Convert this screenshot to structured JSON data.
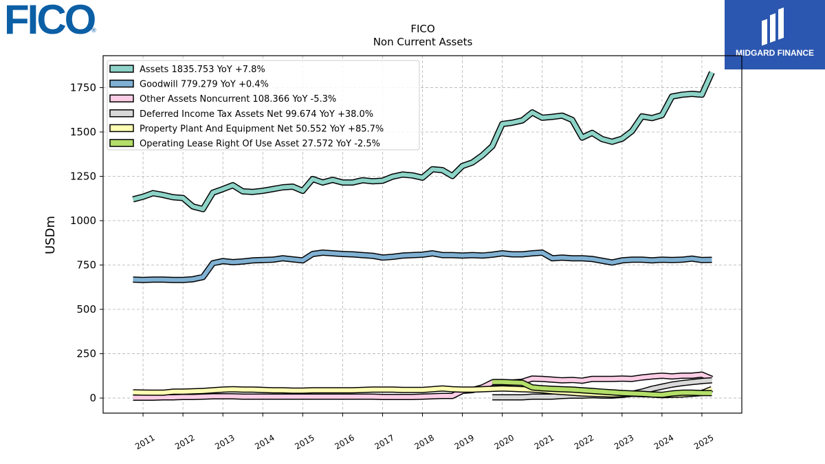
{
  "logos": {
    "fico_text": "FICO",
    "fico_reg": "®",
    "partner_text": "MIDGARD FINANCE"
  },
  "chart_data": {
    "type": "line",
    "title": "FICO",
    "subtitle": "Non Current  Assets",
    "xlabel": "",
    "ylabel": "USDm",
    "xlim": [
      2010.0,
      2026.0
    ],
    "ylim": [
      -85,
      1930
    ],
    "yticks": [
      0,
      250,
      500,
      750,
      1000,
      1250,
      1500,
      1750
    ],
    "ytick_labels": [
      "0",
      "250",
      "500",
      "750",
      "1000",
      "1250",
      "1500",
      "1750"
    ],
    "xticks": [
      2011,
      2012,
      2013,
      2014,
      2015,
      2016,
      2017,
      2018,
      2019,
      2020,
      2021,
      2022,
      2023,
      2024,
      2025
    ],
    "xtick_labels": [
      "2011",
      "2012",
      "2013",
      "2014",
      "2015",
      "2016",
      "2017",
      "2018",
      "2019",
      "2020",
      "2021",
      "2022",
      "2023",
      "2024",
      "2025"
    ],
    "grid": true,
    "legend_position": "top-left",
    "series": [
      {
        "name": "Assets  1835.753 YoY +7.8%",
        "color": "#8dd3c7",
        "x": [
          2010.75,
          2011.0,
          2011.25,
          2011.5,
          2011.75,
          2012.0,
          2012.25,
          2012.5,
          2012.75,
          2013.0,
          2013.25,
          2013.5,
          2013.75,
          2014.0,
          2014.25,
          2014.5,
          2014.75,
          2015.0,
          2015.25,
          2015.5,
          2015.75,
          2016.0,
          2016.25,
          2016.5,
          2016.75,
          2017.0,
          2017.25,
          2017.5,
          2017.75,
          2018.0,
          2018.25,
          2018.5,
          2018.75,
          2019.0,
          2019.25,
          2019.5,
          2019.75,
          2020.0,
          2020.25,
          2020.5,
          2020.75,
          2021.0,
          2021.25,
          2021.5,
          2021.75,
          2022.0,
          2022.25,
          2022.5,
          2022.75,
          2023.0,
          2023.25,
          2023.5,
          2023.75,
          2024.0,
          2024.25,
          2024.5,
          2024.75,
          2025.0,
          2025.25
        ],
        "values": [
          1120,
          1135,
          1155,
          1145,
          1132,
          1128,
          1080,
          1065,
          1158,
          1178,
          1200,
          1165,
          1162,
          1168,
          1178,
          1188,
          1192,
          1168,
          1235,
          1215,
          1230,
          1215,
          1215,
          1228,
          1222,
          1225,
          1248,
          1260,
          1255,
          1242,
          1290,
          1285,
          1252,
          1308,
          1328,
          1368,
          1420,
          1545,
          1552,
          1565,
          1610,
          1580,
          1585,
          1592,
          1568,
          1468,
          1495,
          1460,
          1445,
          1462,
          1505,
          1588,
          1578,
          1595,
          1700,
          1710,
          1715,
          1710,
          1835.753
        ]
      },
      {
        "name": "Goodwill  779.279 YoY +0.4%",
        "color": "#80b1d3",
        "x": [
          2010.75,
          2011.0,
          2011.25,
          2011.5,
          2011.75,
          2012.0,
          2012.25,
          2012.5,
          2012.75,
          2013.0,
          2013.25,
          2013.5,
          2013.75,
          2014.0,
          2014.25,
          2014.5,
          2014.75,
          2015.0,
          2015.25,
          2015.5,
          2015.75,
          2016.0,
          2016.25,
          2016.5,
          2016.75,
          2017.0,
          2017.25,
          2017.5,
          2017.75,
          2018.0,
          2018.25,
          2018.5,
          2018.75,
          2019.0,
          2019.25,
          2019.5,
          2019.75,
          2020.0,
          2020.25,
          2020.5,
          2020.75,
          2021.0,
          2021.25,
          2021.5,
          2021.75,
          2022.0,
          2022.25,
          2022.5,
          2022.75,
          2023.0,
          2023.25,
          2023.5,
          2023.75,
          2024.0,
          2024.25,
          2024.5,
          2024.75,
          2025.0,
          2025.25
        ],
        "values": [
          668,
          666,
          668,
          668,
          666,
          666,
          670,
          682,
          760,
          772,
          766,
          770,
          776,
          778,
          780,
          788,
          782,
          776,
          812,
          820,
          816,
          812,
          810,
          806,
          802,
          792,
          796,
          803,
          806,
          808,
          816,
          806,
          806,
          803,
          806,
          803,
          808,
          816,
          810,
          810,
          816,
          820,
          788,
          792,
          788,
          788,
          784,
          774,
          764,
          776,
          780,
          780,
          776,
          780,
          778,
          780,
          786,
          778,
          779.279
        ]
      },
      {
        "name": "Other Assets Noncurrent  108.366 YoY -5.3%",
        "color": "#fccde5",
        "x": [
          2010.75,
          2011.0,
          2011.25,
          2011.5,
          2011.75,
          2012.0,
          2012.25,
          2012.5,
          2012.75,
          2013.0,
          2013.25,
          2013.5,
          2013.75,
          2014.0,
          2014.25,
          2014.5,
          2014.75,
          2015.0,
          2015.25,
          2015.5,
          2015.75,
          2016.0,
          2016.25,
          2016.5,
          2016.75,
          2017.0,
          2017.25,
          2017.5,
          2017.75,
          2018.0,
          2018.25,
          2018.5,
          2018.75,
          2019.0,
          2019.25,
          2019.5,
          2019.75,
          2020.0,
          2020.25,
          2020.5,
          2020.75,
          2021.0,
          2021.25,
          2021.5,
          2021.75,
          2022.0,
          2022.25,
          2022.5,
          2022.75,
          2023.0,
          2023.25,
          2023.5,
          2023.75,
          2024.0,
          2024.25,
          2024.5,
          2024.75,
          2025.0,
          2025.25
        ],
        "values": [
          2,
          2,
          2,
          4,
          4,
          6,
          6,
          8,
          10,
          10,
          10,
          8,
          8,
          8,
          8,
          8,
          8,
          8,
          8,
          8,
          8,
          8,
          8,
          8,
          8,
          6,
          6,
          6,
          6,
          8,
          10,
          12,
          12,
          40,
          45,
          60,
          88,
          88,
          88,
          92,
          110,
          108,
          104,
          100,
          102,
          98,
          108,
          108,
          108,
          110,
          108,
          116,
          122,
          126,
          122,
          126,
          126,
          132,
          108.366
        ]
      },
      {
        "name": "Deferred Income Tax Assets Net  99.674 YoY +38.0%",
        "color": "#d9d9d9",
        "x": [
          2019.75,
          2020.0,
          2020.25,
          2020.5,
          2020.75,
          2021.0,
          2021.25,
          2021.5,
          2021.75,
          2022.0,
          2022.25,
          2022.5,
          2022.75,
          2023.0,
          2023.25,
          2023.5,
          2023.75,
          2024.0,
          2024.25,
          2024.5,
          2024.75,
          2025.0,
          2025.25
        ],
        "values": [
          4,
          4,
          4,
          4,
          8,
          8,
          8,
          12,
          14,
          14,
          16,
          14,
          14,
          18,
          24,
          36,
          52,
          64,
          76,
          84,
          90,
          96,
          99.674
        ]
      },
      {
        "name": "Property Plant And Equipment Net  50.552 YoY +85.7%",
        "color": "#ffffb3",
        "x": [
          2010.75,
          2011.0,
          2011.25,
          2011.5,
          2011.75,
          2012.0,
          2012.25,
          2012.5,
          2012.75,
          2013.0,
          2013.25,
          2013.5,
          2013.75,
          2014.0,
          2014.25,
          2014.5,
          2014.75,
          2015.0,
          2015.25,
          2015.5,
          2015.75,
          2016.0,
          2016.25,
          2016.5,
          2016.75,
          2017.0,
          2017.25,
          2017.5,
          2017.75,
          2018.0,
          2018.25,
          2018.5,
          2018.75,
          2019.0,
          2019.25,
          2019.5,
          2019.75,
          2020.0,
          2020.25,
          2020.5,
          2020.75,
          2021.0,
          2021.25,
          2021.5,
          2021.75,
          2022.0,
          2022.25,
          2022.5,
          2022.75,
          2023.0,
          2023.25,
          2023.5,
          2023.75,
          2024.0,
          2024.25,
          2024.5,
          2024.75,
          2025.0,
          2025.25
        ],
        "values": [
          32,
          31,
          30,
          30,
          36,
          36,
          38,
          40,
          44,
          48,
          50,
          48,
          48,
          46,
          44,
          44,
          42,
          42,
          44,
          44,
          44,
          44,
          44,
          46,
          48,
          48,
          48,
          46,
          46,
          46,
          50,
          54,
          50,
          48,
          48,
          50,
          52,
          54,
          52,
          50,
          48,
          44,
          38,
          34,
          30,
          26,
          24,
          22,
          20,
          22,
          24,
          22,
          20,
          16,
          18,
          20,
          24,
          28,
          50.552
        ]
      },
      {
        "name": "Operating Lease Right Of Use Asset  27.572 YoY -2.5%",
        "color": "#b3de69",
        "x": [
          2019.75,
          2020.0,
          2020.25,
          2020.5,
          2020.75,
          2021.0,
          2021.25,
          2021.5,
          2021.75,
          2022.0,
          2022.25,
          2022.5,
          2022.75,
          2023.0,
          2023.25,
          2023.5,
          2023.75,
          2024.0,
          2024.25,
          2024.5,
          2024.75,
          2025.0,
          2025.25
        ],
        "values": [
          90,
          90,
          88,
          86,
          60,
          55,
          52,
          50,
          48,
          44,
          40,
          36,
          32,
          28,
          26,
          24,
          20,
          18,
          26,
          30,
          30,
          28,
          27.572
        ]
      }
    ]
  }
}
